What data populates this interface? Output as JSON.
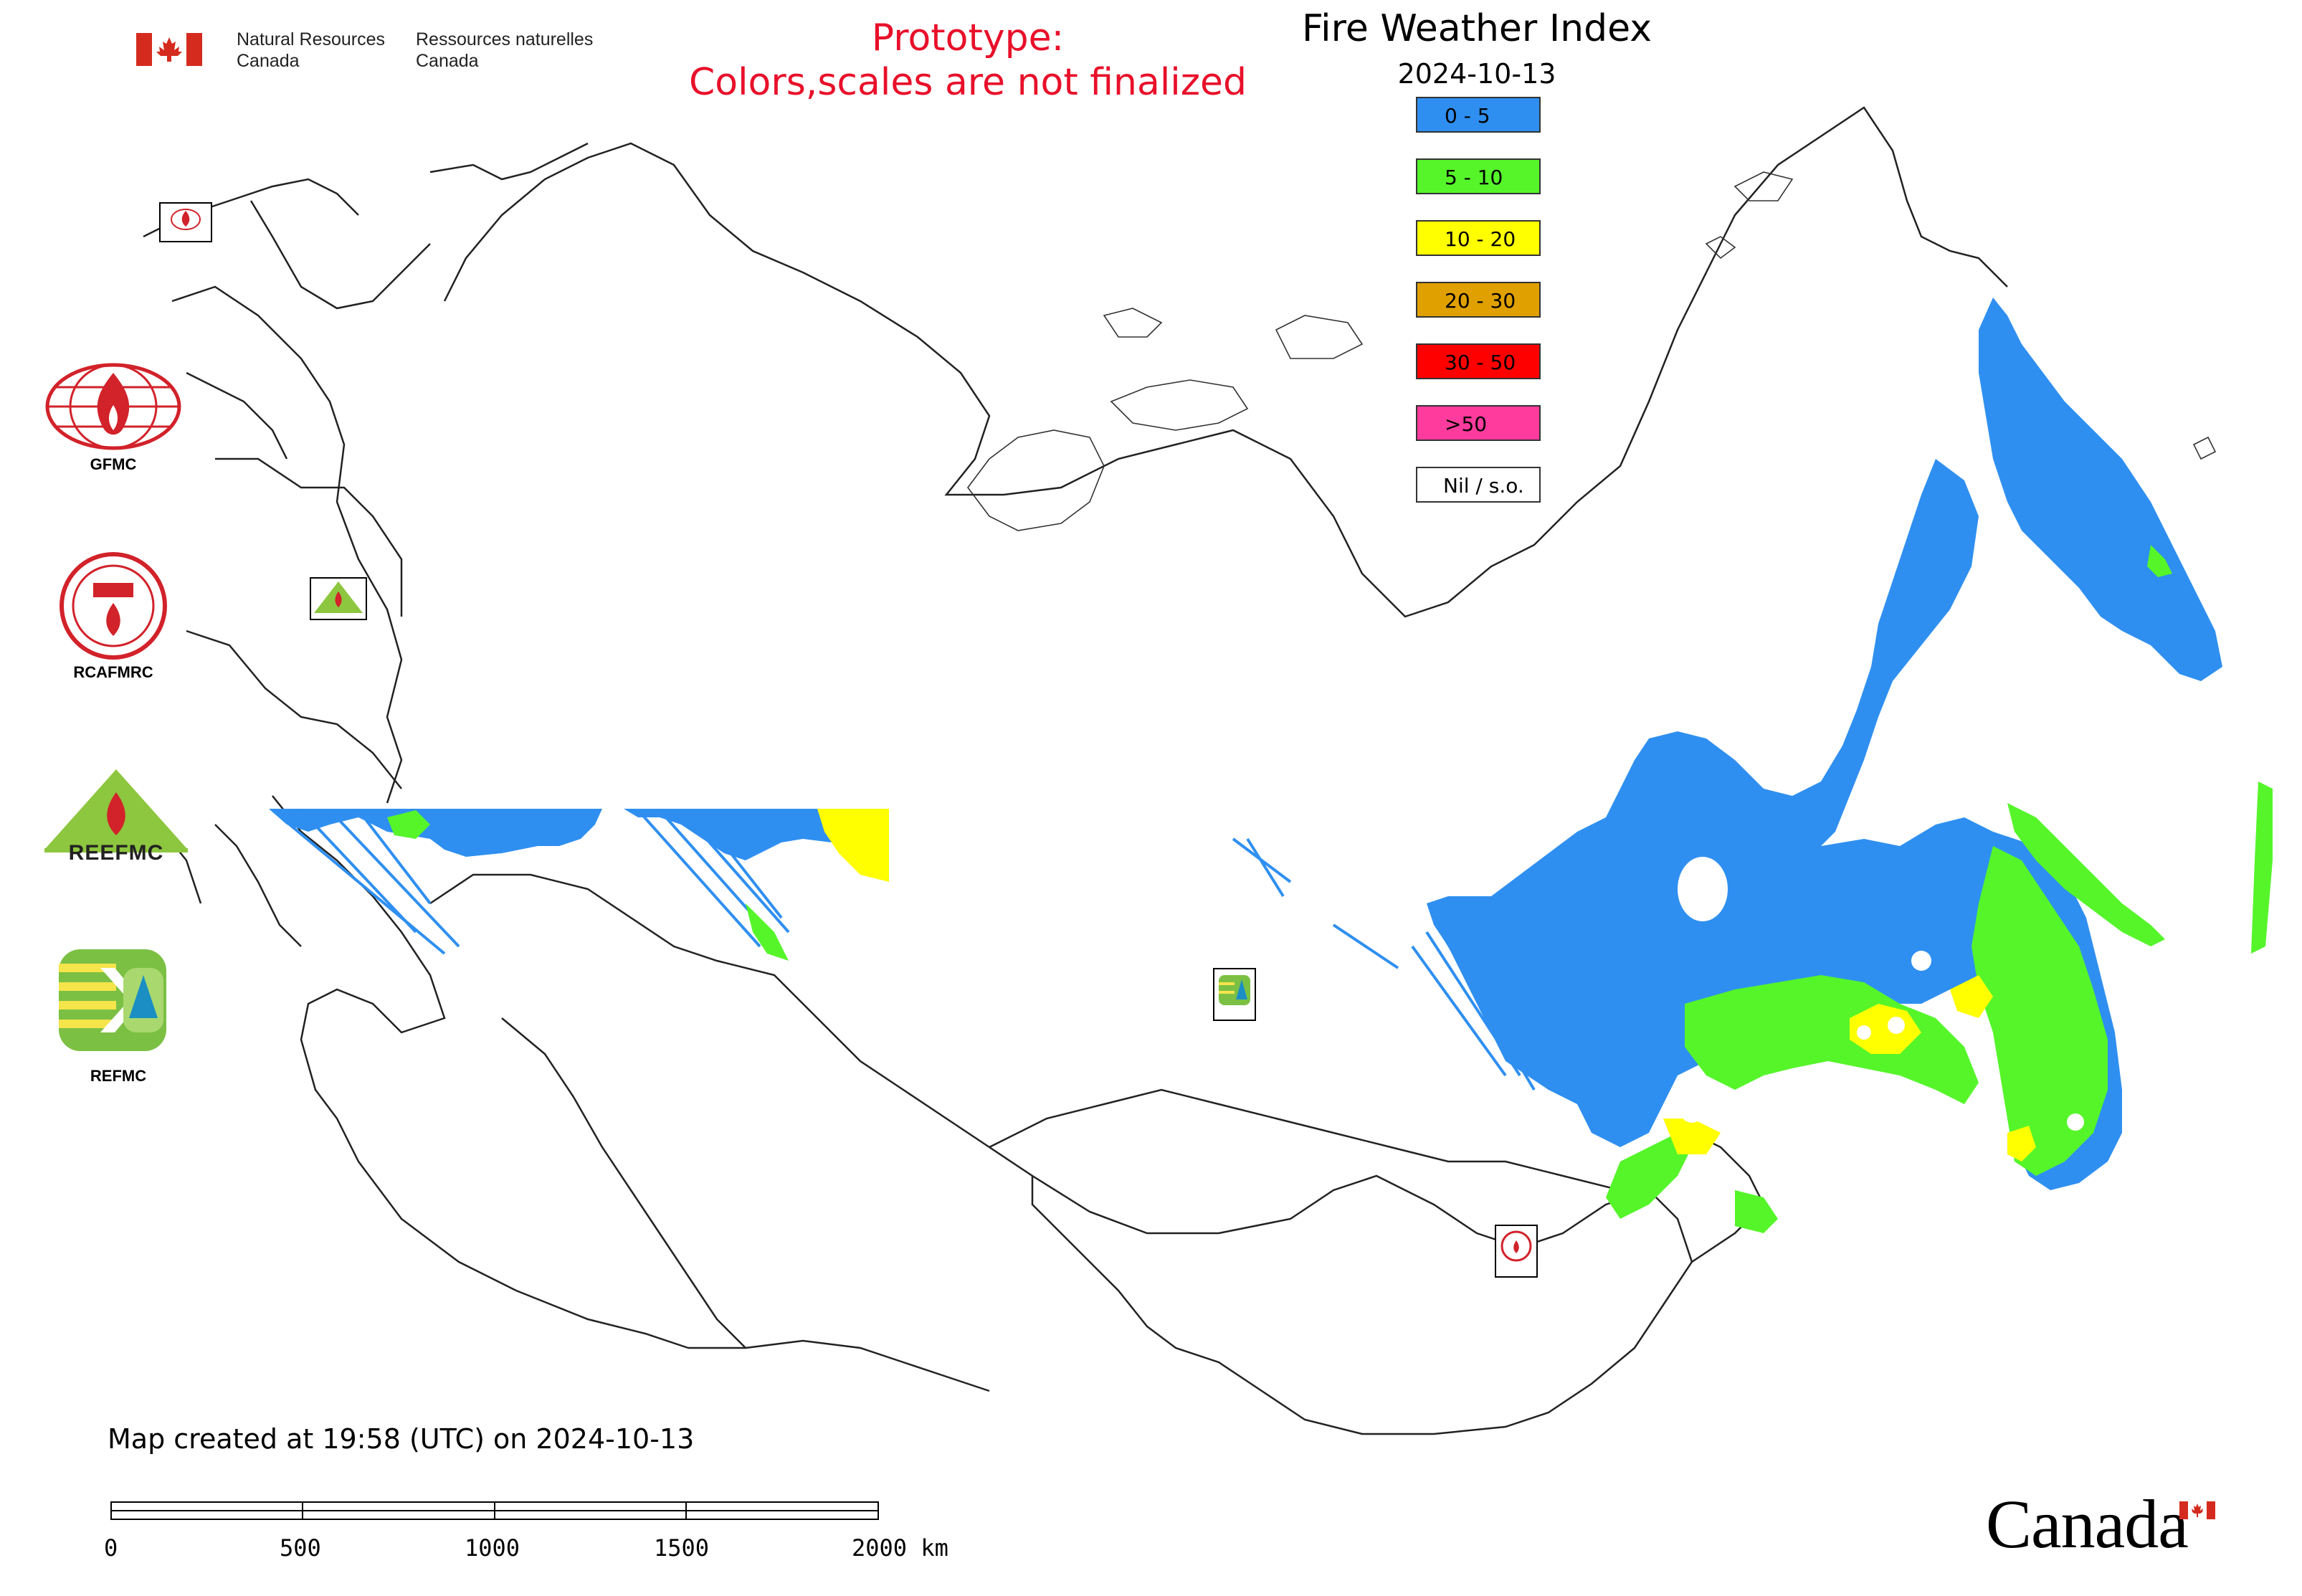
{
  "header": {
    "nrcan_en": "Natural Resources\nCanada",
    "nrcan_fr": "Ressources naturelles\nCanada",
    "prototype_line1": "Prototype:",
    "prototype_line2": "Colors,scales are not finalized",
    "title": "Fire Weather Index",
    "date": "2024-10-13"
  },
  "legend": {
    "items": [
      {
        "label": "0 - 5",
        "color": "#2f8ff0"
      },
      {
        "label": "5 - 10",
        "color": "#55f52a"
      },
      {
        "label": "10 - 20",
        "color": "#ffff00"
      },
      {
        "label": "20 - 30",
        "color": "#e0a000"
      },
      {
        "label": "30 - 50",
        "color": "#ff0000"
      },
      {
        "label": ">50",
        "color": "#ff3b9d"
      },
      {
        "label": "Nil / s.o.",
        "color": "#ffffff"
      }
    ]
  },
  "logos": {
    "gfmc": "GFMC",
    "rcafmrc": "RCAFMRC",
    "reefmc": "REEFMC",
    "refmc": "REFMC",
    "reefmc_wordmark": "REEFMC",
    "rcafmrc_badge": "RCAFMRC"
  },
  "footer": {
    "created": "Map created at 19:58 (UTC) on 2024-10-13",
    "canada": "Canada"
  },
  "scalebar": {
    "ticks": [
      "0",
      "500",
      "1000",
      "1500",
      "2000 km"
    ]
  },
  "colors": {
    "blue": "#2f8ff0",
    "green": "#55f52a",
    "yellow": "#ffff00",
    "prototype_red": "#e8102a"
  }
}
